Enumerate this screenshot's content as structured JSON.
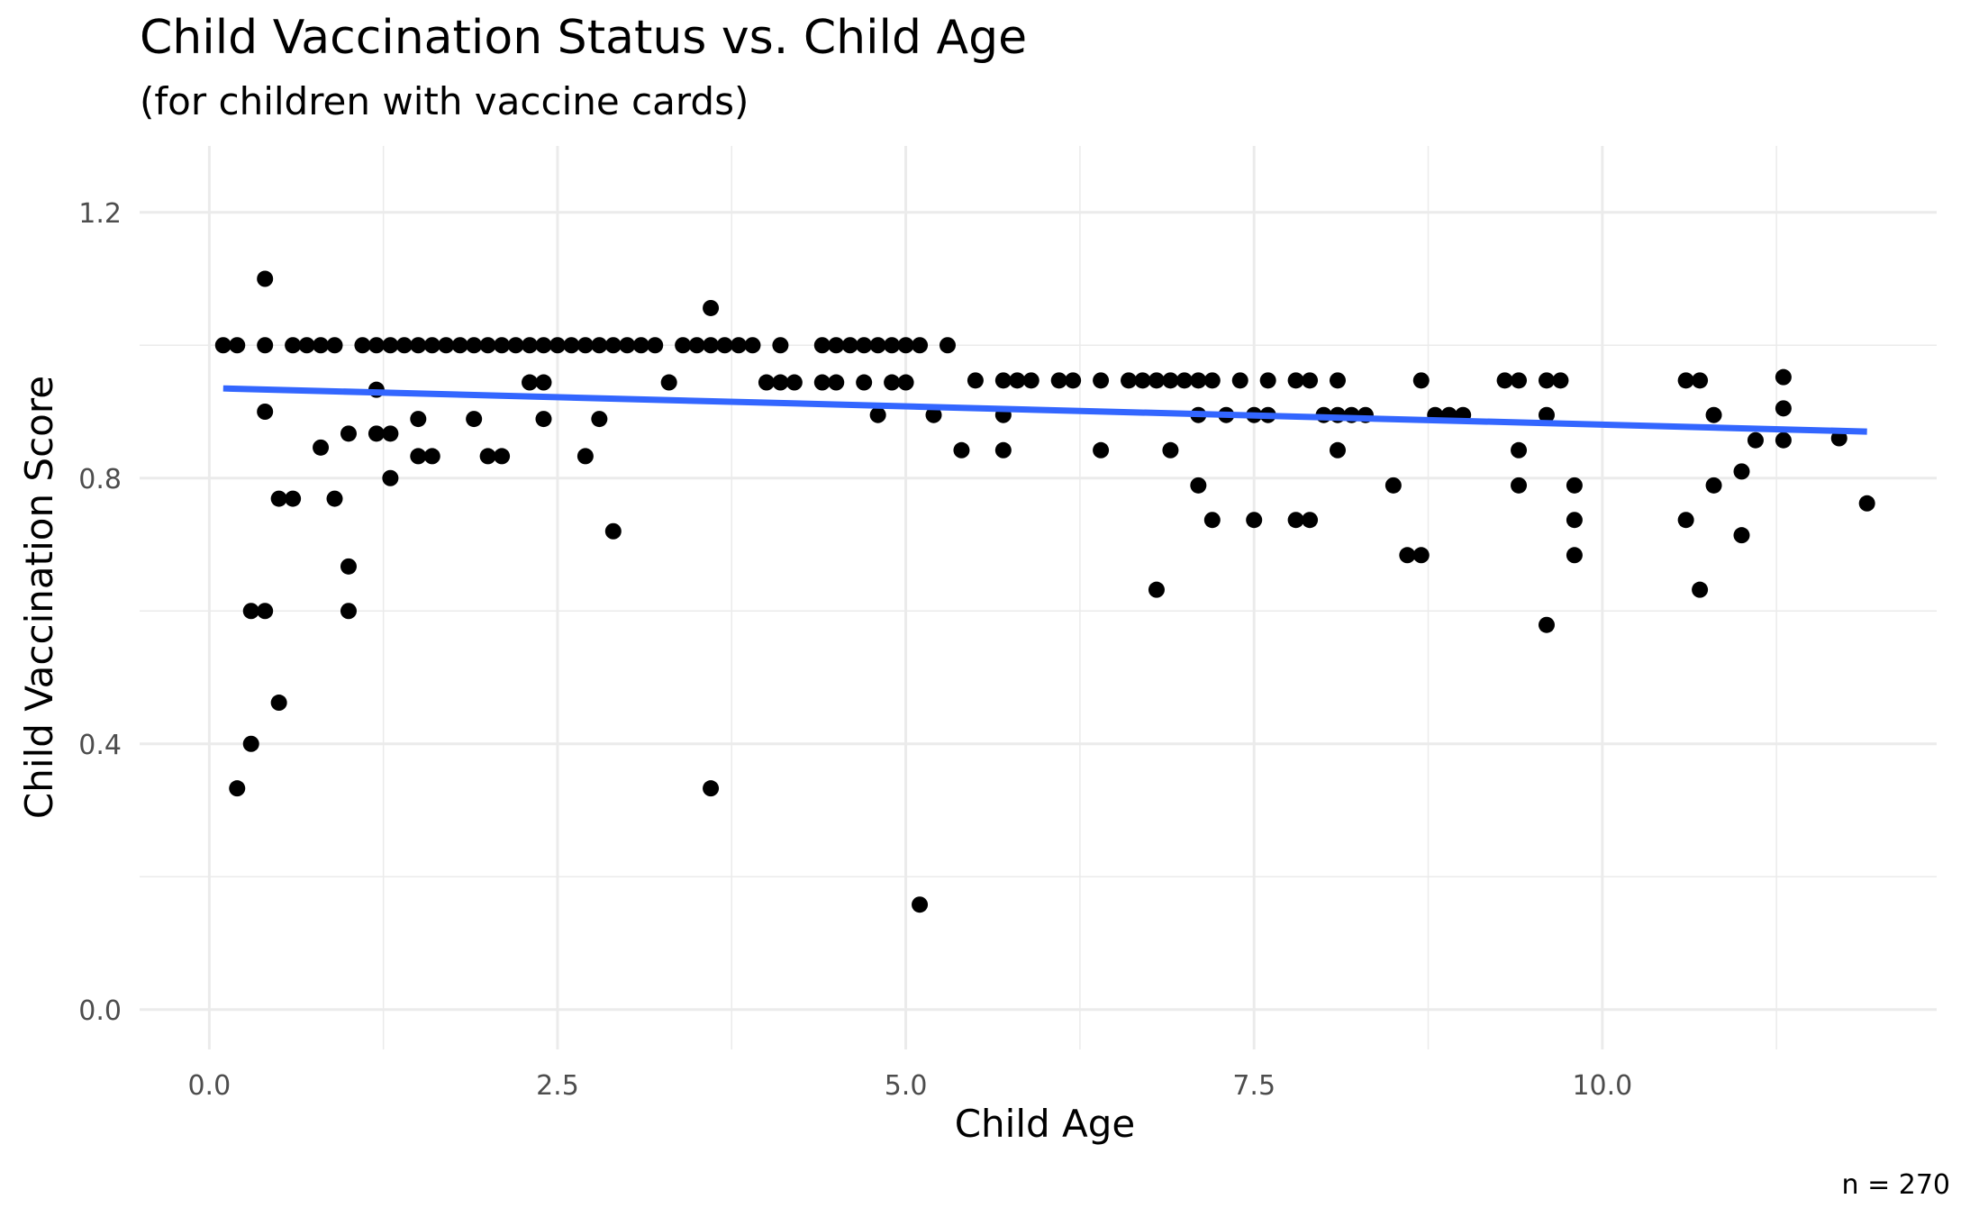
{
  "chart_data": {
    "type": "scatter",
    "title": "Child Vaccination Status vs. Child Age",
    "subtitle": "(for children with vaccine cards)",
    "xlabel": "Child Age",
    "ylabel": "Child Vaccination Score",
    "caption": "n = 270",
    "xlim": [
      -0.5,
      12.4
    ],
    "ylim": [
      -0.06,
      1.3
    ],
    "x_ticks": [
      0.0,
      2.5,
      5.0,
      7.5,
      10.0
    ],
    "x_tick_labels": [
      "0.0",
      "2.5",
      "5.0",
      "7.5",
      "10.0"
    ],
    "y_ticks": [
      0.0,
      0.4,
      0.8,
      1.2
    ],
    "y_tick_labels": [
      "0.0",
      "0.4",
      "0.8",
      "1.2"
    ],
    "grid": true,
    "point_color": "#000000",
    "trend_color": "#3366FF",
    "trend_line": {
      "x": [
        0.1,
        11.9
      ],
      "y": [
        0.935,
        0.87
      ]
    },
    "points": [
      [
        0.1,
        1.0
      ],
      [
        0.2,
        1.0
      ],
      [
        0.2,
        0.333
      ],
      [
        0.3,
        0.6
      ],
      [
        0.3,
        0.4
      ],
      [
        0.4,
        1.1
      ],
      [
        0.4,
        1.0
      ],
      [
        0.4,
        0.9
      ],
      [
        0.4,
        0.6
      ],
      [
        0.5,
        0.769
      ],
      [
        0.5,
        0.462
      ],
      [
        0.6,
        1.0
      ],
      [
        0.6,
        0.769
      ],
      [
        0.7,
        1.0
      ],
      [
        0.8,
        1.0
      ],
      [
        0.8,
        0.846
      ],
      [
        0.9,
        1.0
      ],
      [
        0.9,
        0.769
      ],
      [
        1.0,
        0.867
      ],
      [
        1.0,
        0.667
      ],
      [
        1.0,
        0.6
      ],
      [
        1.1,
        1.0
      ],
      [
        1.2,
        1.0
      ],
      [
        1.2,
        0.933
      ],
      [
        1.2,
        0.867
      ],
      [
        1.3,
        1.0
      ],
      [
        1.3,
        0.867
      ],
      [
        1.3,
        0.8
      ],
      [
        1.4,
        1.0
      ],
      [
        1.5,
        1.0
      ],
      [
        1.5,
        0.889
      ],
      [
        1.5,
        0.833
      ],
      [
        1.6,
        1.0
      ],
      [
        1.6,
        0.833
      ],
      [
        1.7,
        1.0
      ],
      [
        1.8,
        1.0
      ],
      [
        1.9,
        1.0
      ],
      [
        1.9,
        0.889
      ],
      [
        2.0,
        1.0
      ],
      [
        2.0,
        0.833
      ],
      [
        2.1,
        1.0
      ],
      [
        2.1,
        0.833
      ],
      [
        2.2,
        1.0
      ],
      [
        2.3,
        1.0
      ],
      [
        2.3,
        0.944
      ],
      [
        2.4,
        1.0
      ],
      [
        2.4,
        0.944
      ],
      [
        2.4,
        0.889
      ],
      [
        2.5,
        1.0
      ],
      [
        2.6,
        1.0
      ],
      [
        2.7,
        1.0
      ],
      [
        2.7,
        0.833
      ],
      [
        2.8,
        1.0
      ],
      [
        2.8,
        0.889
      ],
      [
        2.9,
        1.0
      ],
      [
        2.9,
        0.72
      ],
      [
        3.0,
        1.0
      ],
      [
        3.1,
        1.0
      ],
      [
        3.2,
        1.0
      ],
      [
        3.3,
        0.944
      ],
      [
        3.4,
        1.0
      ],
      [
        3.5,
        1.0
      ],
      [
        3.6,
        1.056
      ],
      [
        3.6,
        1.0
      ],
      [
        3.6,
        0.333
      ],
      [
        3.7,
        1.0
      ],
      [
        3.8,
        1.0
      ],
      [
        3.9,
        1.0
      ],
      [
        4.0,
        0.944
      ],
      [
        4.1,
        1.0
      ],
      [
        4.1,
        0.944
      ],
      [
        4.2,
        0.944
      ],
      [
        4.4,
        1.0
      ],
      [
        4.4,
        0.944
      ],
      [
        4.5,
        1.0
      ],
      [
        4.5,
        0.944
      ],
      [
        4.6,
        1.0
      ],
      [
        4.7,
        1.0
      ],
      [
        4.7,
        0.944
      ],
      [
        4.8,
        1.0
      ],
      [
        4.8,
        0.895
      ],
      [
        4.9,
        1.0
      ],
      [
        4.9,
        0.944
      ],
      [
        5.0,
        1.0
      ],
      [
        5.0,
        0.944
      ],
      [
        5.1,
        1.0
      ],
      [
        5.1,
        0.158
      ],
      [
        5.2,
        0.895
      ],
      [
        5.3,
        1.0
      ],
      [
        5.4,
        0.842
      ],
      [
        5.5,
        0.947
      ],
      [
        5.7,
        0.947
      ],
      [
        5.7,
        0.895
      ],
      [
        5.7,
        0.842
      ],
      [
        5.8,
        0.947
      ],
      [
        5.9,
        0.947
      ],
      [
        6.1,
        0.947
      ],
      [
        6.2,
        0.947
      ],
      [
        6.4,
        0.947
      ],
      [
        6.4,
        0.842
      ],
      [
        6.6,
        0.947
      ],
      [
        6.7,
        0.947
      ],
      [
        6.8,
        0.947
      ],
      [
        6.8,
        0.632
      ],
      [
        6.9,
        0.947
      ],
      [
        6.9,
        0.842
      ],
      [
        7.0,
        0.947
      ],
      [
        7.1,
        0.947
      ],
      [
        7.1,
        0.895
      ],
      [
        7.1,
        0.789
      ],
      [
        7.2,
        0.947
      ],
      [
        7.2,
        0.737
      ],
      [
        7.3,
        0.895
      ],
      [
        7.4,
        0.947
      ],
      [
        7.5,
        0.895
      ],
      [
        7.5,
        0.737
      ],
      [
        7.6,
        0.947
      ],
      [
        7.6,
        0.895
      ],
      [
        7.8,
        0.947
      ],
      [
        7.8,
        0.737
      ],
      [
        7.9,
        0.947
      ],
      [
        7.9,
        0.737
      ],
      [
        8.0,
        0.895
      ],
      [
        8.1,
        0.947
      ],
      [
        8.1,
        0.895
      ],
      [
        8.1,
        0.842
      ],
      [
        8.2,
        0.895
      ],
      [
        8.3,
        0.895
      ],
      [
        8.5,
        0.789
      ],
      [
        8.6,
        0.684
      ],
      [
        8.7,
        0.947
      ],
      [
        8.7,
        0.684
      ],
      [
        8.8,
        0.895
      ],
      [
        8.9,
        0.895
      ],
      [
        9.0,
        0.895
      ],
      [
        9.3,
        0.947
      ],
      [
        9.4,
        0.947
      ],
      [
        9.4,
        0.842
      ],
      [
        9.4,
        0.789
      ],
      [
        9.6,
        0.947
      ],
      [
        9.6,
        0.895
      ],
      [
        9.6,
        0.579
      ],
      [
        9.7,
        0.947
      ],
      [
        9.8,
        0.789
      ],
      [
        9.8,
        0.737
      ],
      [
        9.8,
        0.684
      ],
      [
        10.6,
        0.947
      ],
      [
        10.6,
        0.737
      ],
      [
        10.7,
        0.947
      ],
      [
        10.7,
        0.632
      ],
      [
        10.8,
        0.895
      ],
      [
        10.8,
        0.789
      ],
      [
        11.0,
        0.81
      ],
      [
        11.0,
        0.714
      ],
      [
        11.1,
        0.857
      ],
      [
        11.3,
        0.952
      ],
      [
        11.3,
        0.905
      ],
      [
        11.3,
        0.857
      ],
      [
        11.7,
        0.86
      ],
      [
        11.9,
        0.762
      ]
    ]
  }
}
